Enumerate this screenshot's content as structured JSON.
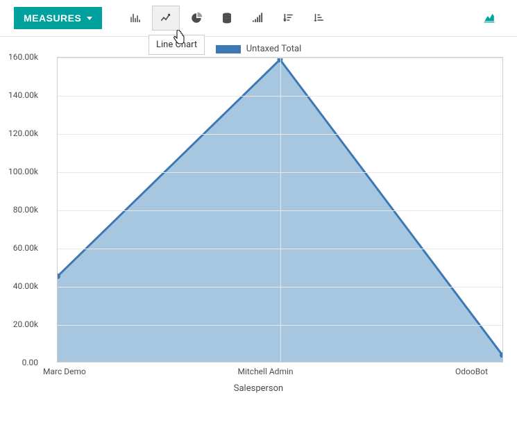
{
  "toolbar": {
    "measures_label": "MEASURES",
    "measures_bg": "#00a09d",
    "icon_color": "#4c4c4c",
    "active_bg": "#f0f0f0",
    "tooltip_text": "Line Chart",
    "right_icon_color": "#00a09d"
  },
  "legend": {
    "label": "Untaxed Total",
    "swatch_color": "#3d78b4"
  },
  "chart": {
    "type": "line-area",
    "x_title": "Salesperson",
    "categories": [
      "Marc Demo",
      "Mitchell Admin",
      "OdooBot"
    ],
    "values": [
      45000,
      159000,
      3500
    ],
    "line_color": "#3d78b4",
    "fill_color": "#a7c7e0",
    "fill_opacity": 1,
    "marker_color": "#3d78b4",
    "marker_radius": 4,
    "line_width": 3,
    "ylim": [
      0,
      160000
    ],
    "ytick_step": 20000,
    "ytick_labels": [
      "0.00",
      "20.00k",
      "40.00k",
      "60.00k",
      "80.00k",
      "100.00k",
      "120.00k",
      "140.00k",
      "160.00k"
    ],
    "background_color": "#ffffff",
    "grid_color": "#e8e8e8",
    "border_color": "#cccccc",
    "label_color": "#4c4c4c",
    "label_fontsize": 12
  }
}
